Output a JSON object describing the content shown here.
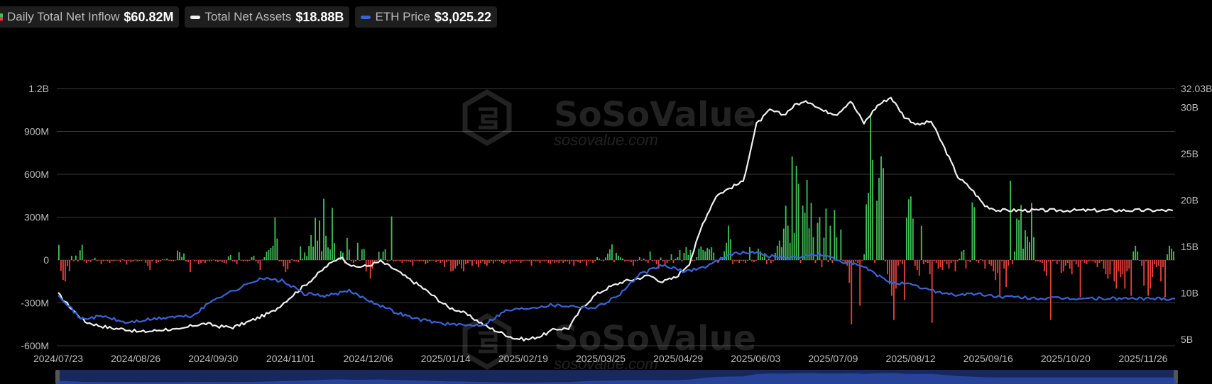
{
  "legend": {
    "inflow": {
      "label": "Daily Total Net Inflow",
      "value": "$60.82M"
    },
    "assets": {
      "label": "Total Net Assets",
      "value": "$18.88B"
    },
    "price": {
      "label": "ETH Price",
      "value": "$3,025.22"
    }
  },
  "watermark": {
    "brand": "SoSoValue",
    "url": "sosovalue.com"
  },
  "colors": {
    "positive": "#3fbf56",
    "negative": "#e5403a",
    "assets_line": "#f0f0f0",
    "price_line": "#3b63d8",
    "grid": "#3a3a3a",
    "navigator": "#1a2f6e"
  },
  "chart_data": {
    "type": "bar+line",
    "x_ticks": [
      "2024/07/23",
      "2024/08/26",
      "2024/09/30",
      "2024/11/01",
      "2024/12/06",
      "2025/01/14",
      "2025/02/19",
      "2025/03/25",
      "2025/04/29",
      "2025/06/03",
      "2025/07/09",
      "2025/08/12",
      "2025/09/16",
      "2025/10/20",
      "2025/11/26"
    ],
    "left_axis": {
      "series": "Daily Total Net Inflow",
      "unit": "USD",
      "ticks": [
        "1.2B",
        "900M",
        "600M",
        "300M",
        "0",
        "-300M",
        "-600M"
      ],
      "range": [
        -600000000,
        1200000000
      ]
    },
    "right_axis": {
      "series": "Total Net Assets",
      "unit": "USD",
      "ticks": [
        "32.03B",
        "30B",
        "25B",
        "20B",
        "15B",
        "10B",
        "5B"
      ],
      "range": [
        5000000000,
        32030000000
      ]
    },
    "inflow_M": [
      106,
      -77,
      -139,
      -150,
      -43,
      -78,
      29,
      -9,
      31,
      -12,
      68,
      106,
      -10,
      -20,
      -8,
      -14,
      4,
      16,
      -8,
      -3,
      -30,
      -10,
      -4,
      -10,
      -20,
      -8,
      -10,
      -5,
      -3,
      -15,
      4,
      -8,
      -32,
      -5,
      -16,
      -10,
      2,
      -10,
      -5,
      -6,
      0,
      -20,
      -40,
      -70,
      -10,
      0,
      -20,
      -15,
      -10,
      5,
      3,
      10,
      -5,
      -8,
      -10,
      -3,
      66,
      54,
      22,
      46,
      -10,
      -15,
      -85,
      0,
      -10,
      -5,
      -30,
      -20,
      -10,
      -20,
      -5,
      -10,
      -8,
      3,
      -10,
      -15,
      -8,
      -15,
      -20,
      -25,
      26,
      35,
      -10,
      -12,
      -30,
      54,
      -5,
      -10,
      -8,
      -10,
      -5,
      20,
      30,
      -10,
      -25,
      -70,
      2,
      20,
      58,
      70,
      84,
      100,
      297,
      150,
      -10,
      -10,
      -45,
      -85,
      -65,
      -20,
      5,
      -10,
      -10,
      -15,
      96,
      10,
      53,
      28,
      98,
      174,
      94,
      294,
      136,
      276,
      62,
      428,
      170,
      88,
      74,
      365,
      118,
      -10,
      18,
      64,
      52,
      -25,
      155,
      72,
      -10,
      -20,
      -10,
      120,
      -5,
      74,
      78,
      -80,
      -50,
      -130,
      -60,
      -20,
      -8,
      58,
      10,
      59,
      76,
      -10,
      -5,
      305,
      -10,
      -10,
      -5,
      -10,
      -20,
      -8,
      -10,
      -10,
      -15,
      -40,
      -8,
      -5,
      -10,
      -5,
      -8,
      -30,
      -20,
      -10,
      -5,
      -3,
      -15,
      -5,
      -20,
      -10,
      -50,
      -15,
      -5,
      -80,
      -75,
      -60,
      -40,
      -30,
      -60,
      -80,
      -30,
      -20,
      -10,
      -40,
      -5,
      -30,
      -50,
      -20,
      -10,
      -30,
      -40,
      -20,
      -10,
      -25,
      -10,
      -5,
      -10,
      -20,
      -30,
      -15,
      -5,
      -25,
      -10,
      -5,
      -10,
      -5,
      -20,
      -10,
      -5,
      -5,
      -10,
      -40,
      -5,
      -10,
      -10,
      -20,
      -5,
      -10,
      -5,
      -20,
      -30,
      -10,
      -20,
      -15,
      -20,
      -8,
      -20,
      -10,
      -10,
      -30,
      -10,
      -40,
      -10,
      -15,
      -20,
      -10,
      -5,
      -40,
      -10,
      -5,
      -20,
      -10,
      20,
      10,
      -5,
      -10,
      18,
      45,
      75,
      110,
      -15,
      50,
      30,
      18,
      12,
      -10,
      -5,
      -8,
      -15,
      -40,
      -10,
      -8,
      20,
      -5,
      10,
      -10,
      -20,
      60,
      -8,
      -5,
      -30,
      -60,
      18,
      -10,
      -40,
      -20,
      -5,
      40,
      -20,
      10,
      20,
      70,
      -10,
      50,
      90,
      35,
      70,
      -10,
      -5,
      20,
      80,
      95,
      70,
      60,
      85,
      75,
      90,
      52,
      -10,
      -20,
      5,
      20,
      60,
      120,
      240,
      145,
      -30,
      -10,
      -8,
      -20,
      -5,
      -10,
      -20,
      -5,
      90,
      -10,
      -15,
      -5,
      80,
      60,
      20,
      48,
      -30,
      10,
      -20,
      -10,
      50,
      100,
      136,
      90,
      220,
      380,
      240,
      120,
      726,
      190,
      660,
      533,
      -20,
      380,
      332,
      560,
      222,
      400,
      160,
      -20,
      260,
      300,
      -50,
      156,
      360,
      -15,
      240,
      -20,
      350,
      160,
      -5,
      214,
      -10,
      -20,
      -40,
      -160,
      -450,
      -20,
      -10,
      -20,
      -320,
      -5,
      40,
      390,
      470,
      1024,
      700,
      -20,
      415,
      576,
      726,
      644,
      -10,
      -100,
      -170,
      -250,
      -420,
      -200,
      -40,
      -10,
      -30,
      -280,
      295,
      425,
      445,
      290,
      -40,
      -70,
      -110,
      240,
      -30,
      -15,
      -20,
      -100,
      -440,
      -10,
      -20,
      -60,
      -50,
      -70,
      -10,
      -30,
      -60,
      -20,
      -10,
      -80,
      -10,
      10,
      60,
      70,
      -60,
      -5,
      -15,
      404,
      370,
      -10,
      -20,
      5,
      -10,
      -60,
      0,
      -30,
      -40,
      -80,
      -140,
      -90,
      -250,
      -10,
      -60,
      -190,
      -40,
      555,
      -30,
      60,
      290,
      280,
      385,
      80,
      208,
      165,
      125,
      400,
      160,
      -10,
      -10,
      -15,
      -20,
      -80,
      -110,
      -10,
      -420,
      -10,
      -5,
      -30,
      -10,
      -90,
      -80,
      -40,
      -20,
      -60,
      -100,
      -10,
      -30,
      -50,
      -260,
      -5,
      -20,
      -30,
      -10,
      -5,
      -10,
      -20,
      -50,
      -20,
      -10,
      -60,
      -100,
      -130,
      -100,
      -10,
      -150,
      -200,
      -80,
      -120,
      -100,
      -200,
      -80,
      -60,
      -250,
      60,
      100,
      60,
      -5,
      -40,
      -180,
      -10,
      -250,
      -200,
      -120,
      -30,
      -50,
      -40,
      -150,
      -50,
      -260,
      40,
      100,
      80,
      61
    ],
    "net_assets_B": {
      "x_index": [
        0,
        6,
        12,
        18,
        24,
        30,
        36,
        42,
        48,
        54,
        60,
        66,
        72,
        78,
        84,
        90,
        96,
        102,
        108,
        114,
        120,
        126,
        132,
        138,
        144,
        150,
        156,
        162,
        168,
        174,
        180,
        186,
        192,
        198,
        204,
        210,
        216,
        222,
        228,
        234,
        240,
        246,
        252,
        258,
        264,
        270,
        276,
        282,
        288,
        294,
        300,
        306,
        312,
        318,
        324,
        330,
        336,
        342,
        348,
        354,
        360,
        366,
        372,
        378,
        384,
        390,
        396,
        402,
        408,
        414,
        420,
        426,
        432,
        438,
        444,
        450,
        456,
        462,
        468,
        474,
        480,
        486,
        492,
        498
      ],
      "values": [
        9.9,
        8.3,
        6.9,
        6.5,
        6.2,
        6.1,
        5.8,
        5.9,
        6.1,
        6.0,
        6.5,
        6.7,
        6.4,
        6.3,
        6.8,
        7.4,
        8.0,
        9.2,
        10.4,
        11.6,
        12.9,
        13.9,
        12.8,
        12.9,
        13.4,
        12.6,
        11.6,
        10.7,
        9.6,
        8.5,
        8.0,
        7.2,
        6.3,
        5.7,
        5.1,
        5.0,
        5.4,
        6.1,
        6.2,
        8.4,
        9.8,
        10.6,
        11.2,
        11.5,
        11.9,
        11.2,
        11.7,
        13.2,
        17.5,
        20.5,
        21.3,
        22.0,
        28.2,
        29.7,
        29.2,
        30.4,
        30.6,
        29.6,
        29.3,
        30.7,
        28.3,
        30.2,
        31.1,
        29.0,
        28.1,
        28.5,
        25.6,
        22.5,
        21.2,
        19.4,
        18.9,
        18.9,
        18.9,
        18.9,
        18.9,
        18.9,
        18.9,
        18.9,
        18.9,
        18.9,
        18.9,
        18.9,
        18.9,
        18.88
      ]
    },
    "eth_price_series_name": "ETH Price",
    "eth_price_relative": {
      "x_index": [
        0,
        10,
        20,
        30,
        40,
        50,
        60,
        70,
        80,
        90,
        100,
        110,
        120,
        130,
        140,
        150,
        160,
        170,
        180,
        190,
        200,
        210,
        220,
        230,
        240,
        250,
        260,
        270,
        280,
        290,
        300,
        310,
        320,
        330,
        340,
        350,
        360,
        370,
        380,
        390,
        400,
        410,
        420,
        430,
        440,
        450,
        460,
        470,
        480,
        490,
        499
      ],
      "values": [
        9.9,
        7.2,
        7.5,
        6.8,
        7.1,
        7.4,
        7.5,
        9.4,
        10.4,
        11.6,
        11.3,
        9.9,
        9.7,
        10.2,
        9.1,
        8.0,
        7.2,
        6.8,
        6.5,
        6.6,
        8.1,
        8.4,
        8.7,
        8.6,
        8.4,
        9.7,
        12.0,
        13.0,
        12.3,
        12.9,
        14.2,
        14.4,
        13.9,
        13.8,
        14.2,
        13.4,
        12.8,
        11.3,
        10.9,
        10.3,
        9.8,
        9.9,
        9.6,
        9.5,
        9.4,
        9.4,
        9.4,
        9.4,
        9.4,
        9.4,
        9.4
      ]
    },
    "grid": true,
    "legend_position": "top-left"
  }
}
